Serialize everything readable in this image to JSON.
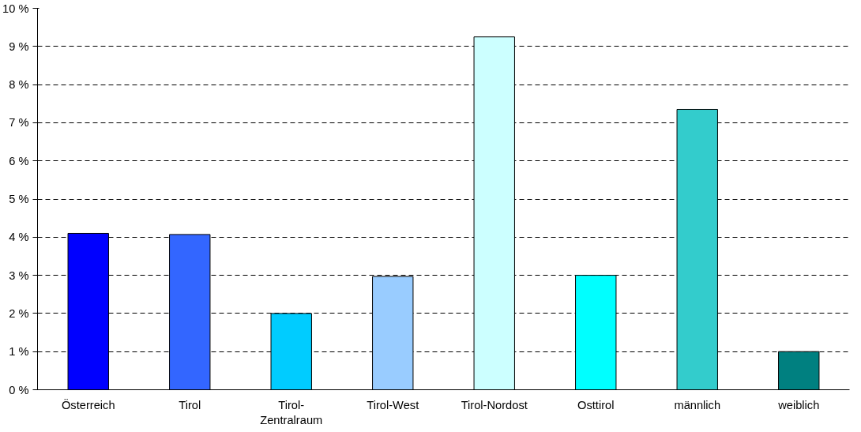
{
  "chart_data": {
    "type": "bar",
    "categories": [
      "Österreich",
      "Tirol",
      "Tirol-Zentralraum",
      "Tirol-West",
      "Tirol-Nordost",
      "Osttirol",
      "männlich",
      "weiblich"
    ],
    "values": [
      4.1,
      4.07,
      2.0,
      2.97,
      9.25,
      3.0,
      7.35,
      1.0
    ],
    "colors": [
      "#0000ff",
      "#3366ff",
      "#00ccff",
      "#99ccff",
      "#ccffff",
      "#00ffff",
      "#33cccc",
      "#008080"
    ],
    "ylim": [
      0,
      10
    ],
    "yticks": [
      {
        "value": 0,
        "label": "0 %"
      },
      {
        "value": 1,
        "label": "1 %"
      },
      {
        "value": 2,
        "label": "2 %"
      },
      {
        "value": 3,
        "label": "3 %"
      },
      {
        "value": 4,
        "label": "4 %"
      },
      {
        "value": 5,
        "label": "5 %"
      },
      {
        "value": 6,
        "label": "6 %"
      },
      {
        "value": 7,
        "label": "7 %"
      },
      {
        "value": 8,
        "label": "8 %"
      },
      {
        "value": 9,
        "label": "9 %"
      },
      {
        "value": 10,
        "label": "10 %"
      }
    ],
    "grid": "y"
  }
}
